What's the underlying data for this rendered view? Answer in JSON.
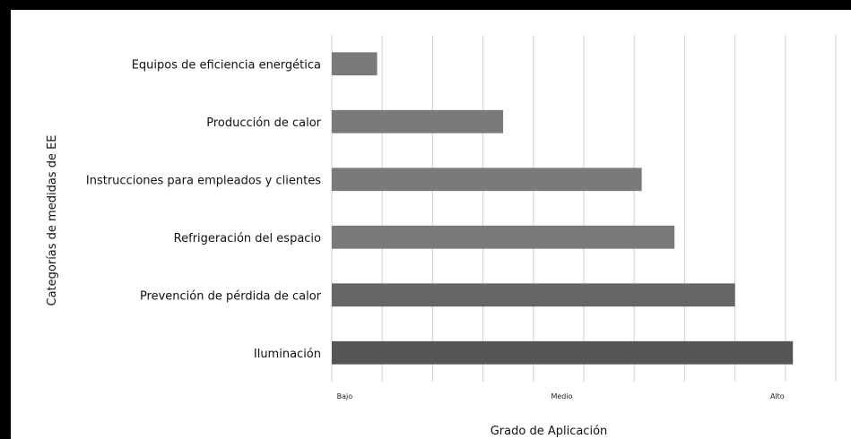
{
  "chart_data": {
    "type": "bar",
    "orientation": "horizontal",
    "categories": [
      "Equipos de eficiencia energética",
      "Producción de calor",
      "Instrucciones para empleados y clientes",
      "Refrigeración del espacio",
      "Prevención de pérdida de calor",
      "Iluminación"
    ],
    "values": [
      0.9,
      3.4,
      6.15,
      6.8,
      8.0,
      9.15
    ],
    "xlim": [
      0,
      10
    ],
    "x_ticks": [
      {
        "value": 0.1,
        "label": "Bajo"
      },
      {
        "value": 4.35,
        "label": "Medio"
      },
      {
        "value": 8.7,
        "label": "Alto"
      }
    ],
    "xlabel": "Grado de Aplicación",
    "ylabel": "Categorías de medidas de EE",
    "grid": "vertical",
    "legend": "none",
    "colors": {
      "bars": [
        "#7a7a7a",
        "#7a7a7a",
        "#7a7a7a",
        "#7a7a7a",
        "#656565",
        "#555555"
      ],
      "grid": "#d2d2d2",
      "frame": "#000000",
      "background": "#ffffff"
    }
  }
}
